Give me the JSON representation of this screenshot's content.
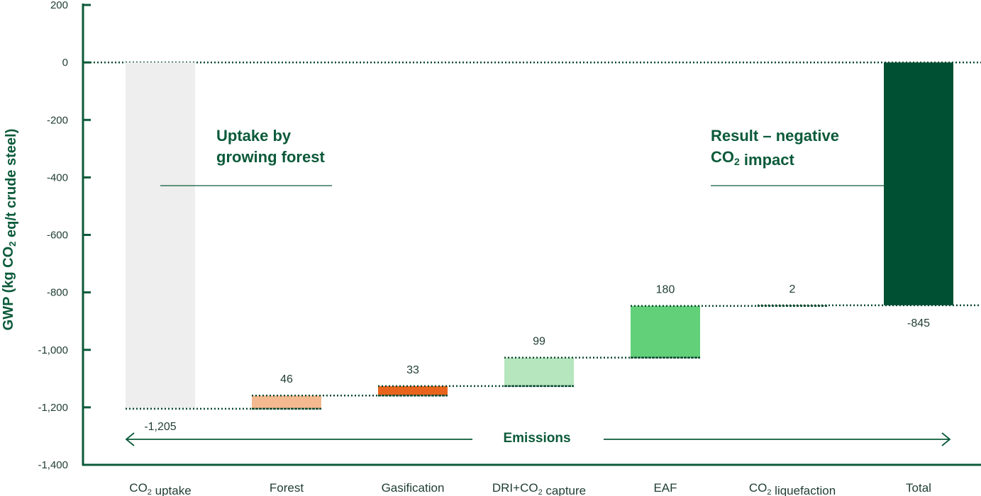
{
  "chart_data": {
    "type": "waterfall",
    "ylabel": "GWP (kg CO₂ eq/t crude steel)",
    "ylim": [
      -1400,
      200
    ],
    "yticks": [
      200,
      0,
      -200,
      -400,
      -600,
      -800,
      -1000,
      -1200,
      -1400
    ],
    "ytick_labels": [
      "200",
      "0",
      "-200",
      "-400",
      "-600",
      "-800",
      "-1,000",
      "-1,200",
      "-1,400"
    ],
    "categories": [
      "CO₂ uptake",
      "Forest",
      "Gasification",
      "DRI+CO₂ capture",
      "EAF",
      "CO₂ liquefaction",
      "Total"
    ],
    "steps": [
      {
        "label": "-1,205",
        "start": 0,
        "end": -1205,
        "color": "#eeeeee",
        "label_pos": "below"
      },
      {
        "label": "46",
        "start": -1205,
        "end": -1159,
        "color": "#f4b990",
        "label_pos": "above"
      },
      {
        "label": "33",
        "start": -1159,
        "end": -1126,
        "color": "#e8641c",
        "label_pos": "above"
      },
      {
        "label": "99",
        "start": -1126,
        "end": -1027,
        "color": "#b6e6bd",
        "label_pos": "above"
      },
      {
        "label": "180",
        "start": -1027,
        "end": -847,
        "color": "#62d079",
        "label_pos": "above"
      },
      {
        "label": "2",
        "start": -847,
        "end": -845,
        "color": "#7f9a8a",
        "label_pos": "above"
      },
      {
        "label": "-845",
        "start": 0,
        "end": -845,
        "color": "#005034",
        "label_pos": "below"
      }
    ],
    "annotations": {
      "uptake": [
        "Uptake by",
        "growing forest"
      ],
      "result_line1": "Result – negative",
      "result_line2": "CO₂ impact",
      "emissions": "Emissions"
    },
    "colors": {
      "axis": "#0b5a3a",
      "text": "#1f3d31",
      "connector": "#0b4a32"
    }
  }
}
